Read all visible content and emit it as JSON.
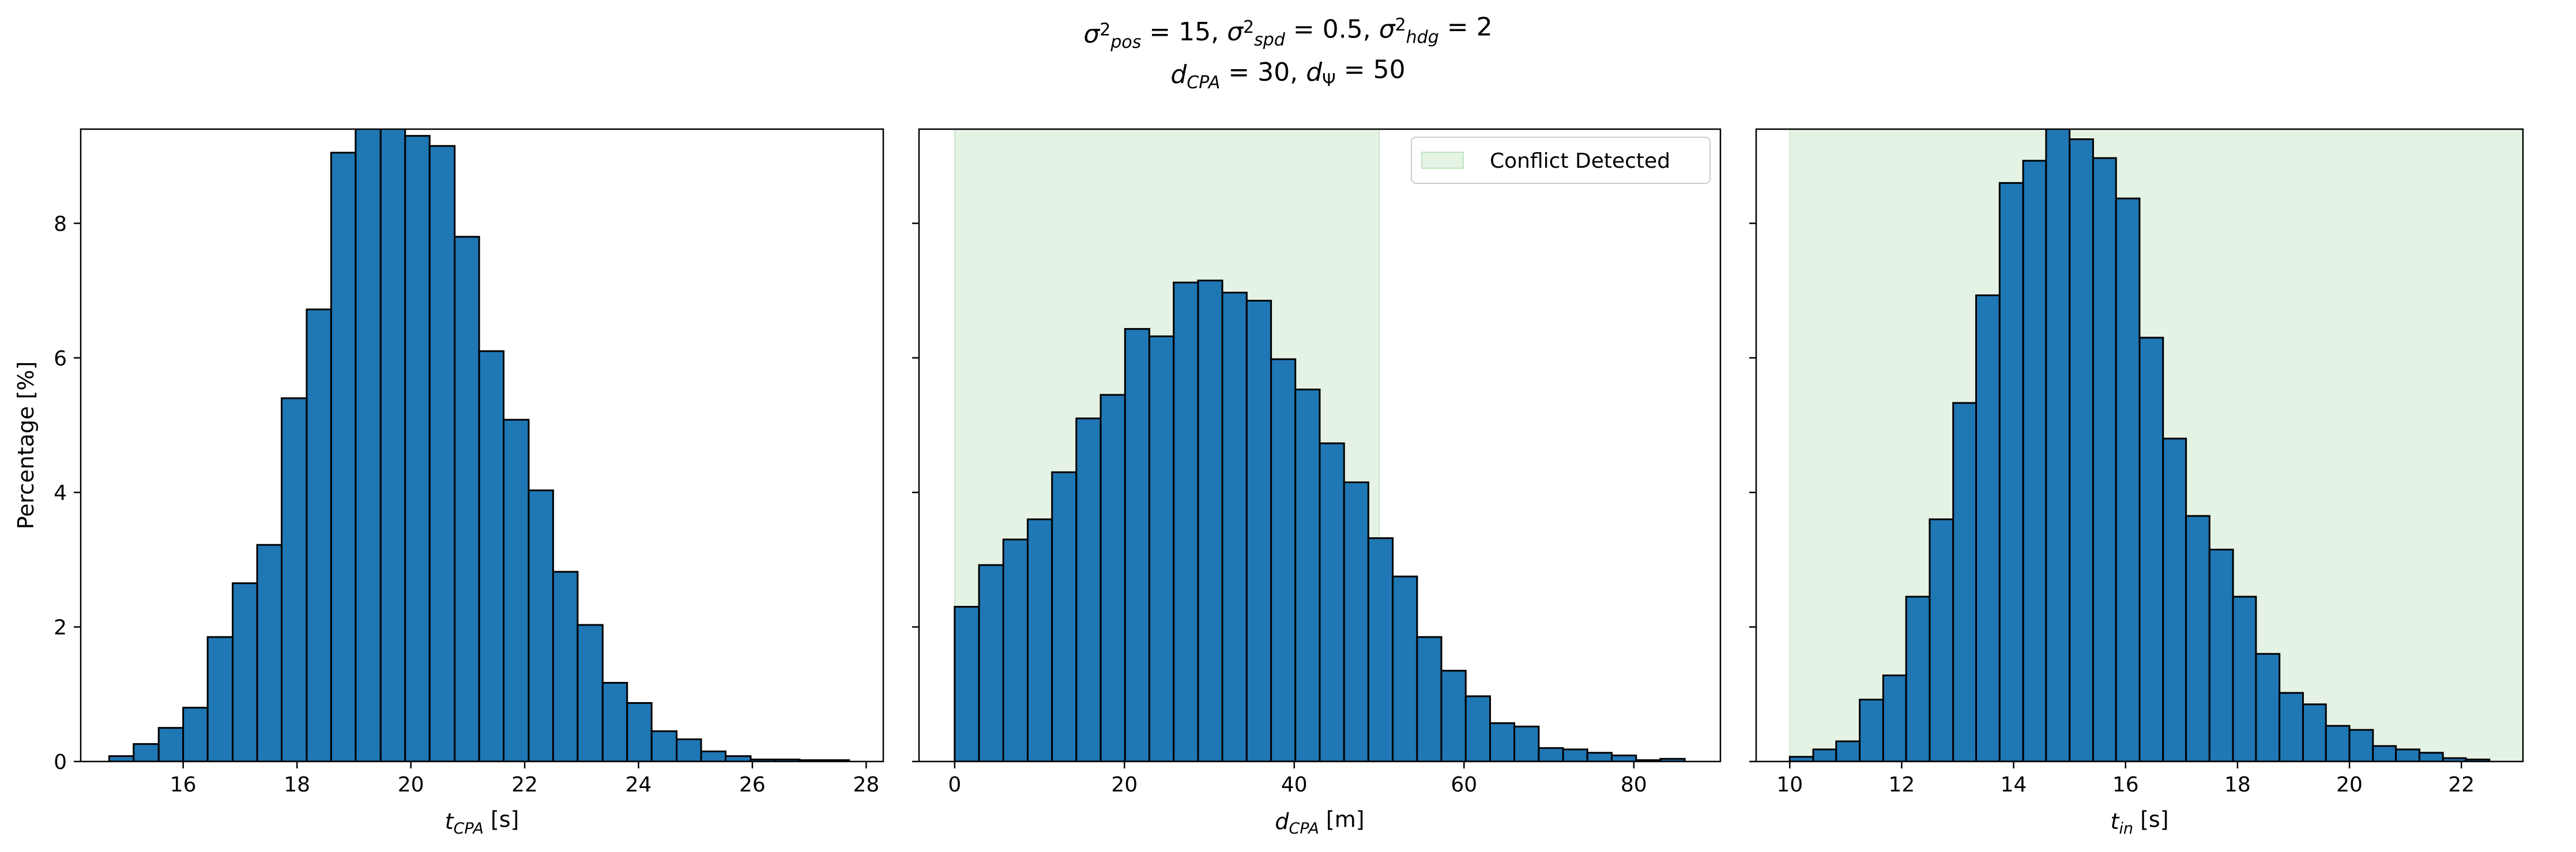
{
  "title": {
    "line1_parts": [
      {
        "t": "σ",
        "i": true
      },
      {
        "t": "2",
        "sup": true
      },
      {
        "t": "pos",
        "sub": true,
        "i": true
      },
      {
        "t": " = 15, "
      },
      {
        "t": "σ",
        "i": true
      },
      {
        "t": "2",
        "sup": true
      },
      {
        "t": "spd",
        "sub": true,
        "i": true
      },
      {
        "t": " = 0.5, "
      },
      {
        "t": "σ",
        "i": true
      },
      {
        "t": "2",
        "sup": true
      },
      {
        "t": "hdg",
        "sub": true,
        "i": true
      },
      {
        "t": " = 2"
      }
    ],
    "line2_parts": [
      {
        "t": "d",
        "i": true
      },
      {
        "t": "CPA",
        "sub": true,
        "i": true
      },
      {
        "t": " = 30, "
      },
      {
        "t": "d",
        "i": true
      },
      {
        "t": "Ψ",
        "sub": true
      },
      {
        "t": " = 50"
      }
    ]
  },
  "colors": {
    "bar_fill": "#1f77b4",
    "bar_edge": "#000000",
    "span_fill": "#2ca02c"
  },
  "chart_data": [
    {
      "type": "bar",
      "xlabel_parts": [
        {
          "t": "t",
          "i": true
        },
        {
          "t": "CPA",
          "sub": true,
          "i": true
        },
        {
          "t": " [s]"
        }
      ],
      "ylabel": "Percentage [%]",
      "xlim": [
        14.2,
        28.3
      ],
      "ylim": [
        0,
        9.4
      ],
      "xticks": [
        "16",
        "18",
        "20",
        "22",
        "24",
        "26",
        "28"
      ],
      "yticks": [
        "0",
        "2",
        "4",
        "6",
        "8"
      ],
      "bin_edges": [
        14.7,
        15.13,
        15.57,
        16.0,
        16.43,
        16.87,
        17.3,
        17.73,
        18.17,
        18.6,
        19.03,
        19.47,
        19.9,
        20.33,
        20.77,
        21.2,
        21.63,
        22.07,
        22.5,
        22.93,
        23.37,
        23.8,
        24.23,
        24.67,
        25.1,
        25.53,
        25.97,
        26.4,
        26.83,
        27.27,
        27.7
      ],
      "values": [
        0.08,
        0.26,
        0.5,
        0.8,
        1.85,
        2.65,
        3.22,
        5.4,
        6.72,
        9.05,
        9.6,
        9.9,
        9.3,
        9.15,
        7.8,
        6.1,
        5.08,
        4.03,
        2.82,
        2.03,
        1.17,
        0.87,
        0.45,
        0.33,
        0.15,
        0.08,
        0.03,
        0.03,
        0.02,
        0.02
      ],
      "grid": false
    },
    {
      "type": "bar",
      "xlabel_parts": [
        {
          "t": "d",
          "i": true
        },
        {
          "t": "CPA",
          "sub": true,
          "i": true
        },
        {
          "t": " [m]"
        }
      ],
      "ylabel": "",
      "xlim": [
        -4.2,
        90.2
      ],
      "ylim": [
        0,
        9.4
      ],
      "xticks": [
        "0",
        "20",
        "40",
        "60",
        "80"
      ],
      "yticks": [],
      "bin_edges": [
        0.0,
        2.87,
        5.73,
        8.6,
        11.47,
        14.33,
        17.2,
        20.07,
        22.93,
        25.8,
        28.67,
        31.53,
        34.4,
        37.27,
        40.13,
        43.0,
        45.87,
        48.73,
        51.6,
        54.47,
        57.33,
        60.2,
        63.07,
        65.93,
        68.8,
        71.67,
        74.53,
        77.4,
        80.27,
        83.13,
        86.0
      ],
      "values": [
        2.3,
        2.92,
        3.3,
        3.6,
        4.3,
        5.1,
        5.45,
        6.43,
        6.32,
        7.12,
        7.15,
        6.97,
        6.85,
        5.98,
        5.53,
        4.73,
        4.15,
        3.32,
        2.75,
        1.85,
        1.35,
        0.97,
        0.57,
        0.52,
        0.2,
        0.18,
        0.13,
        0.09,
        0.02,
        0.04
      ],
      "span": {
        "x0": 0,
        "x1": 50,
        "label": "Conflict Detected"
      },
      "legend_position": "top-right",
      "grid": false
    },
    {
      "type": "bar",
      "xlabel_parts": [
        {
          "t": "t",
          "i": true
        },
        {
          "t": "in",
          "sub": true,
          "i": true
        },
        {
          "t": " [s]"
        }
      ],
      "ylabel": "",
      "xlim": [
        9.4,
        23.1
      ],
      "ylim": [
        0,
        9.4
      ],
      "xticks": [
        "10",
        "12",
        "14",
        "16",
        "18",
        "20",
        "22"
      ],
      "yticks": [],
      "bin_edges": [
        10.0,
        10.42,
        10.83,
        11.25,
        11.67,
        12.08,
        12.5,
        12.92,
        13.33,
        13.75,
        14.17,
        14.58,
        15.0,
        15.42,
        15.83,
        16.25,
        16.67,
        17.08,
        17.5,
        17.92,
        18.33,
        18.75,
        19.17,
        19.58,
        20.0,
        20.42,
        20.83,
        21.25,
        21.67,
        22.08,
        22.5
      ],
      "values": [
        0.07,
        0.18,
        0.3,
        0.92,
        1.28,
        2.45,
        3.6,
        5.33,
        6.93,
        8.6,
        8.93,
        9.45,
        9.25,
        8.97,
        8.37,
        6.3,
        4.8,
        3.65,
        3.15,
        2.45,
        1.6,
        1.02,
        0.85,
        0.53,
        0.47,
        0.23,
        0.18,
        0.13,
        0.05,
        0.03
      ],
      "span": {
        "x0": 10,
        "x1": 23.1
      },
      "grid": false
    }
  ]
}
